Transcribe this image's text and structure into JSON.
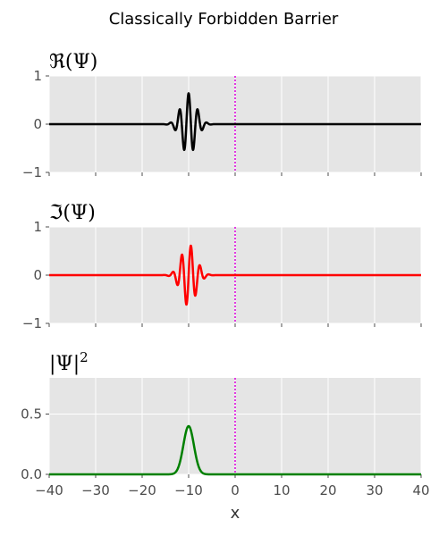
{
  "figure": {
    "title": "Classically Forbidden Barrier"
  },
  "chart_data": [
    {
      "type": "line",
      "panel": "real",
      "title": "ℜ(Ψ)",
      "xlabel": "",
      "ylabel": "",
      "xlim": [
        -40,
        40
      ],
      "ylim": [
        -1,
        1
      ],
      "yticks": [
        -1,
        0,
        1
      ],
      "ytick_labels": [
        "−1",
        "0",
        "1"
      ],
      "xticks": [
        -40,
        -30,
        -20,
        -10,
        0,
        10,
        20,
        30,
        40
      ],
      "grid": true,
      "series": [
        {
          "kind": "wavepacket_real",
          "x0": -10,
          "sigma": 1.6,
          "amp": 0.64,
          "k": 3.2,
          "phase": 0,
          "color": "#000000"
        }
      ],
      "barrier_line": {
        "x": 0,
        "color": "#e000e0",
        "style": "dotted"
      }
    },
    {
      "type": "line",
      "panel": "imag",
      "title": "ℑ(Ψ)",
      "xlabel": "",
      "ylabel": "",
      "xlim": [
        -40,
        40
      ],
      "ylim": [
        -1,
        1
      ],
      "yticks": [
        -1,
        0,
        1
      ],
      "ytick_labels": [
        "−1",
        "0",
        "1"
      ],
      "xticks": [
        -40,
        -30,
        -20,
        -10,
        0,
        10,
        20,
        30,
        40
      ],
      "grid": true,
      "series": [
        {
          "kind": "wavepacket_imag",
          "x0": -10,
          "sigma": 1.6,
          "amp": 0.64,
          "k": 3.2,
          "phase": 0,
          "color": "#ff0000"
        }
      ],
      "barrier_line": {
        "x": 0,
        "color": "#e000e0",
        "style": "dotted"
      }
    },
    {
      "type": "line",
      "panel": "density",
      "title": "|Ψ|",
      "title_superscript": "2",
      "xlabel": "x",
      "ylabel": "",
      "xlim": [
        -40,
        40
      ],
      "ylim": [
        0,
        0.8
      ],
      "yticks": [
        0.0,
        0.5
      ],
      "ytick_labels": [
        "0.0",
        "0.5"
      ],
      "xticks": [
        -40,
        -30,
        -20,
        -10,
        0,
        10,
        20,
        30,
        40
      ],
      "xtick_labels": [
        "−40",
        "−30",
        "−20",
        "−10",
        "0",
        "10",
        "20",
        "30",
        "40"
      ],
      "grid": true,
      "series": [
        {
          "kind": "density",
          "x0": -10,
          "sigma": 1.6,
          "amp": 0.4,
          "color": "#008000"
        }
      ],
      "barrier_line": {
        "x": 0,
        "color": "#e000e0",
        "style": "dotted"
      }
    }
  ],
  "colors": {
    "axes_bg": "#e5e5e5",
    "grid": "#ffffff",
    "tick": "#4d4d4d"
  }
}
